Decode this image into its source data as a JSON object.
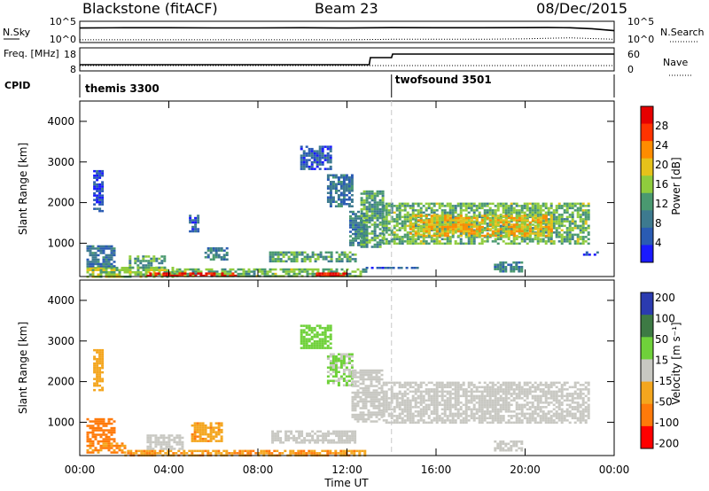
{
  "header": {
    "station": "Blackstone (fitACF)",
    "beam": "Beam 23",
    "date": "08/Dec/2015"
  },
  "colors": {
    "power_scale": [
      "#1a1aff",
      "#2a5bb3",
      "#3d7a8f",
      "#4a9970",
      "#8fcc3d",
      "#e6c21a",
      "#ff8c00",
      "#ff3300",
      "#e60000"
    ],
    "velocity_scale": [
      "#2b3bb0",
      "#3d7a44",
      "#6fd13a",
      "#c8c8c2",
      "#f4a61e",
      "#ff7a0a",
      "#ff0000"
    ],
    "frame": "#000000",
    "cpid_divider": "#c8c8c8"
  },
  "chart_data": [
    {
      "type": "line",
      "panel": "sky-noise",
      "left_label": "N.Sky",
      "right_label": "N.Search",
      "y_scale": "log",
      "ylim": [
        1,
        100000
      ],
      "y_ticks_left": [
        "10^5",
        "10^0"
      ],
      "y_ticks_right": [
        "10^5",
        "10^0"
      ],
      "x": [
        0,
        2,
        4,
        6,
        8,
        10,
        12,
        14,
        16,
        18,
        20,
        21,
        22,
        23,
        24
      ],
      "series": [
        {
          "style": "solid",
          "values": [
            10000,
            12000,
            12000,
            11000,
            11000,
            12000,
            10000,
            13000,
            12000,
            12000,
            13000,
            14000,
            12000,
            6000,
            1500
          ]
        },
        {
          "style": "dotted",
          "values": [
            2,
            2,
            2,
            2,
            2,
            2,
            2,
            3,
            3,
            3,
            4,
            6,
            8,
            5,
            3
          ]
        }
      ]
    },
    {
      "type": "line",
      "panel": "frequency",
      "left_label": "Freq. [MHz]",
      "right_label": "Nave",
      "ylim_left": [
        8,
        18
      ],
      "y_ticks_left": [
        "18",
        "8"
      ],
      "ylim_right": [
        0,
        60
      ],
      "y_ticks_right": [
        "60",
        "0"
      ],
      "x": [
        0,
        13,
        13.05,
        14,
        14.05,
        24
      ],
      "series": [
        {
          "style": "solid",
          "values": [
            10.5,
            10.5,
            14.5,
            14.5,
            16.5,
            16.5
          ]
        },
        {
          "style": "dotted",
          "values": [
            10,
            10,
            10,
            10,
            10,
            10
          ]
        }
      ]
    },
    {
      "type": "table",
      "panel": "cpid",
      "label": "CPID",
      "segments": [
        {
          "name": "themis 3300",
          "start": 0,
          "end": 14
        },
        {
          "name": "twofsound 3501",
          "start": 14,
          "end": 24
        }
      ]
    },
    {
      "type": "heatmap",
      "panel": "power",
      "ylabel": "Slant Range [km]",
      "ylim": [
        180,
        4500
      ],
      "y_ticks": [
        "1000",
        "2000",
        "3000",
        "4000"
      ],
      "xlim": [
        0,
        24
      ],
      "colorbar": {
        "label": "Power [dB]",
        "range": [
          0,
          32
        ],
        "ticks": [
          "4",
          "8",
          "12",
          "16",
          "20",
          "24",
          "28"
        ]
      },
      "regions": [
        {
          "t0": 0.3,
          "t1": 4.2,
          "r0": 180,
          "r1": 420,
          "v": 16
        },
        {
          "t0": 4.2,
          "t1": 12.8,
          "r0": 180,
          "r1": 380,
          "v": 14
        },
        {
          "t0": 3.0,
          "t1": 7.0,
          "r0": 200,
          "r1": 280,
          "v": 30
        },
        {
          "t0": 10.6,
          "t1": 12.0,
          "r0": 200,
          "r1": 280,
          "v": 30
        },
        {
          "t0": 0.3,
          "t1": 1.6,
          "r0": 420,
          "r1": 950,
          "v": 8
        },
        {
          "t0": 2.2,
          "t1": 3.8,
          "r0": 400,
          "r1": 700,
          "v": 12
        },
        {
          "t0": 5.6,
          "t1": 6.6,
          "r0": 600,
          "r1": 900,
          "v": 10
        },
        {
          "t0": 8.5,
          "t1": 12.4,
          "r0": 550,
          "r1": 800,
          "v": 12
        },
        {
          "t0": 4.9,
          "t1": 5.3,
          "r0": 1300,
          "r1": 1700,
          "v": 6
        },
        {
          "t0": 0.6,
          "t1": 1.0,
          "r0": 1800,
          "r1": 2800,
          "v": 4
        },
        {
          "t0": 9.9,
          "t1": 11.3,
          "r0": 2800,
          "r1": 3400,
          "v": 6
        },
        {
          "t0": 11.1,
          "t1": 12.2,
          "r0": 1900,
          "r1": 2700,
          "v": 8
        },
        {
          "t0": 12.1,
          "t1": 12.9,
          "r0": 950,
          "r1": 1800,
          "v": 10
        },
        {
          "t0": 12.6,
          "t1": 13.6,
          "r0": 900,
          "r1": 2300,
          "v": 12
        },
        {
          "t0": 13.6,
          "t1": 22.8,
          "r0": 1000,
          "r1": 2000,
          "v": 14
        },
        {
          "t0": 14.8,
          "t1": 21.2,
          "r0": 1200,
          "r1": 1700,
          "v": 20
        },
        {
          "t0": 18.6,
          "t1": 19.8,
          "r0": 300,
          "r1": 550,
          "v": 10
        },
        {
          "t0": 12.6,
          "t1": 15.2,
          "r0": 380,
          "r1": 420,
          "v": 6
        },
        {
          "t0": 22.6,
          "t1": 23.2,
          "r0": 700,
          "r1": 800,
          "v": 6
        }
      ]
    },
    {
      "type": "heatmap",
      "panel": "velocity",
      "ylabel": "Slant Range [km]",
      "ylim": [
        180,
        4500
      ],
      "y_ticks": [
        "1000",
        "2000",
        "3000",
        "4000"
      ],
      "xlabel": "Time UT",
      "xlim": [
        0,
        24
      ],
      "x_ticks": [
        "00:00",
        "04:00",
        "08:00",
        "12:00",
        "16:00",
        "20:00",
        "00:00"
      ],
      "colorbar": {
        "label": "Velocity [m s⁻¹]",
        "range": [
          -250,
          250
        ],
        "ticks": [
          "200",
          "100",
          "50",
          "15",
          "-15",
          "-50",
          "-100",
          "-200"
        ]
      },
      "regions": [
        {
          "t0": 0.3,
          "t1": 1.6,
          "r0": 500,
          "r1": 1100,
          "v": -90
        },
        {
          "t0": 0.3,
          "t1": 2.0,
          "r0": 250,
          "r1": 500,
          "v": -50
        },
        {
          "t0": 2.0,
          "t1": 12.8,
          "r0": 180,
          "r1": 320,
          "v": -45
        },
        {
          "t0": 3.0,
          "t1": 4.6,
          "r0": 350,
          "r1": 700,
          "v": 0
        },
        {
          "t0": 5.0,
          "t1": 6.4,
          "r0": 550,
          "r1": 1000,
          "v": -40
        },
        {
          "t0": 8.6,
          "t1": 12.4,
          "r0": 500,
          "r1": 800,
          "v": 0
        },
        {
          "t0": 9.9,
          "t1": 11.3,
          "r0": 2800,
          "r1": 3400,
          "v": 30
        },
        {
          "t0": 11.1,
          "t1": 12.2,
          "r0": 1900,
          "r1": 2700,
          "v": 20
        },
        {
          "t0": 12.2,
          "t1": 13.6,
          "r0": 1000,
          "r1": 2300,
          "v": 0
        },
        {
          "t0": 13.6,
          "t1": 22.8,
          "r0": 1000,
          "r1": 2000,
          "v": 0
        },
        {
          "t0": 18.6,
          "t1": 19.8,
          "r0": 300,
          "r1": 550,
          "v": 0
        },
        {
          "t0": 0.6,
          "t1": 1.0,
          "r0": 1800,
          "r1": 2800,
          "v": -30
        }
      ]
    }
  ]
}
